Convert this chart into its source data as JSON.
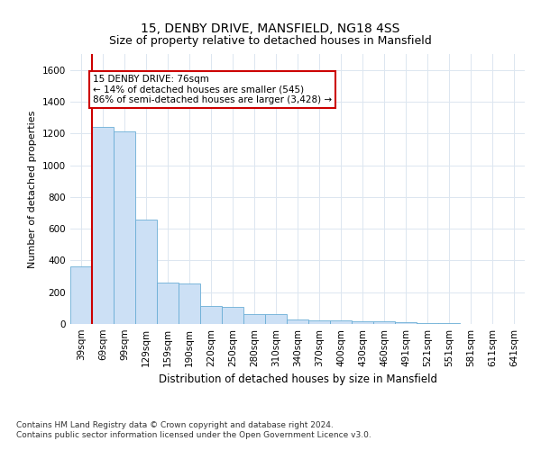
{
  "title1": "15, DENBY DRIVE, MANSFIELD, NG18 4SS",
  "title2": "Size of property relative to detached houses in Mansfield",
  "xlabel": "Distribution of detached houses by size in Mansfield",
  "ylabel": "Number of detached properties",
  "categories": [
    "39sqm",
    "69sqm",
    "99sqm",
    "129sqm",
    "159sqm",
    "190sqm",
    "220sqm",
    "250sqm",
    "280sqm",
    "310sqm",
    "340sqm",
    "370sqm",
    "400sqm",
    "430sqm",
    "460sqm",
    "491sqm",
    "521sqm",
    "551sqm",
    "581sqm",
    "611sqm",
    "641sqm"
  ],
  "values": [
    360,
    1240,
    1210,
    655,
    260,
    255,
    115,
    110,
    65,
    60,
    30,
    25,
    20,
    18,
    15,
    12,
    5,
    3,
    2,
    1,
    1
  ],
  "bar_color": "#cce0f5",
  "bar_edge_color": "#6aaed6",
  "vline_color": "#cc0000",
  "annotation_text": "15 DENBY DRIVE: 76sqm\n← 14% of detached houses are smaller (545)\n86% of semi-detached houses are larger (3,428) →",
  "annotation_box_color": "#ffffff",
  "annotation_box_edge_color": "#cc0000",
  "ylim": [
    0,
    1700
  ],
  "yticks": [
    0,
    200,
    400,
    600,
    800,
    1000,
    1200,
    1400,
    1600
  ],
  "grid_color": "#dce6f0",
  "footnote1": "Contains HM Land Registry data © Crown copyright and database right 2024.",
  "footnote2": "Contains public sector information licensed under the Open Government Licence v3.0.",
  "title1_fontsize": 10,
  "title2_fontsize": 9,
  "xlabel_fontsize": 8.5,
  "ylabel_fontsize": 8,
  "tick_fontsize": 7.5,
  "annot_fontsize": 7.5,
  "footnote_fontsize": 6.5
}
